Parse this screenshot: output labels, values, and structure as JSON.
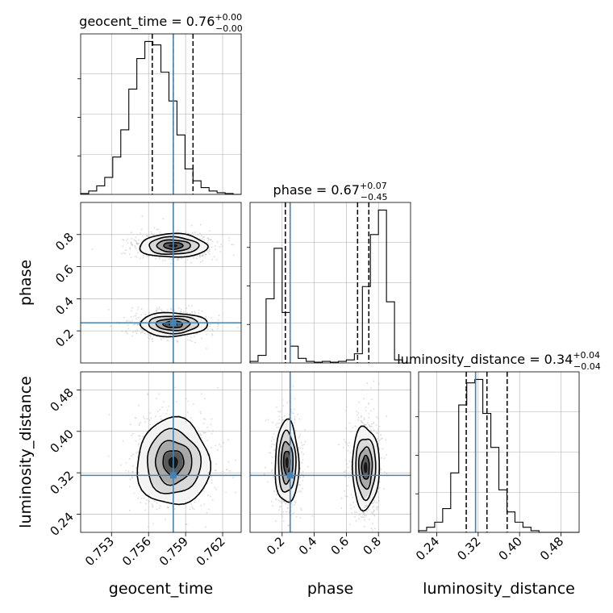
{
  "chart_data": {
    "type": "corner",
    "parameters": [
      {
        "name": "geocent_time",
        "label": "geocent_time",
        "truth": 0.758,
        "range": [
          0.7505,
          0.7635
        ],
        "ticks": [
          0.753,
          0.756,
          0.759,
          0.762
        ],
        "tick_labels": [
          "0.753",
          "0.756",
          "0.759",
          "0.762"
        ],
        "quantiles": [
          0.7563,
          0.758,
          0.7596
        ],
        "title": {
          "prefix": "geocent_time = 0.76",
          "plus": "+0.00",
          "minus": "−0.00"
        }
      },
      {
        "name": "phase",
        "label": "phase",
        "truth": 0.25,
        "range": [
          0.0,
          1.0
        ],
        "ticks": [
          0.2,
          0.4,
          0.6,
          0.8
        ],
        "tick_labels": [
          "0.2",
          "0.4",
          "0.6",
          "0.8"
        ],
        "quantiles": [
          0.22,
          0.67,
          0.74
        ],
        "title": {
          "prefix": "phase = 0.67",
          "plus": "+0.07",
          "minus": "−0.45"
        }
      },
      {
        "name": "luminosity_distance",
        "label": "luminosity_distance",
        "truth": 0.315,
        "range": [
          0.205,
          0.515
        ],
        "ticks": [
          0.24,
          0.32,
          0.4,
          0.48
        ],
        "tick_labels": [
          "0.24",
          "0.32",
          "0.40",
          "0.48"
        ],
        "quantiles": [
          0.297,
          0.337,
          0.376
        ],
        "title": {
          "prefix": "luminosity_distance = 0.34",
          "plus": "+0.04",
          "minus": "−0.04"
        }
      }
    ],
    "histograms": [
      {
        "param": "geocent_time",
        "bin_edges_start": 0.7505,
        "bin_width": 0.00065,
        "counts": [
          0.5,
          2,
          5,
          10,
          22,
          38,
          62,
          80,
          90,
          88,
          72,
          55,
          35,
          15,
          8,
          4,
          2,
          1,
          0.5,
          0
        ]
      },
      {
        "param": "phase",
        "bin_edges_start": 0.0,
        "bin_width": 0.05,
        "counts": [
          1,
          5,
          42,
          75,
          33,
          11,
          3,
          1,
          0.5,
          1,
          0.5,
          1,
          2,
          6,
          50,
          84,
          100,
          40,
          2,
          0
        ]
      },
      {
        "param": "luminosity_distance",
        "bin_edges_start": 0.205,
        "bin_width": 0.0155,
        "counts": [
          1,
          3,
          6,
          14,
          35,
          75,
          88,
          90,
          70,
          50,
          25,
          12,
          6,
          3,
          1,
          0,
          0,
          0,
          0,
          0
        ]
      }
    ],
    "blobs": [
      {
        "x": "geocent_time",
        "y": "phase",
        "centers": [
          [
            0.758,
            0.73
          ],
          [
            0.758,
            0.24
          ]
        ],
        "sigmas": [
          [
            0.0013,
            0.035
          ],
          [
            0.0013,
            0.035
          ]
        ]
      },
      {
        "x": "geocent_time",
        "y": "luminosity_distance",
        "centers": [
          [
            0.758,
            0.34
          ]
        ],
        "sigmas": [
          [
            0.0014,
            0.04
          ]
        ]
      },
      {
        "x": "phase",
        "y": "luminosity_distance",
        "centers": [
          [
            0.23,
            0.34
          ],
          [
            0.72,
            0.33
          ]
        ],
        "sigmas": [
          [
            0.035,
            0.038
          ],
          [
            0.04,
            0.038
          ]
        ]
      }
    ],
    "truth_color": "#4682b4",
    "grid": true
  }
}
